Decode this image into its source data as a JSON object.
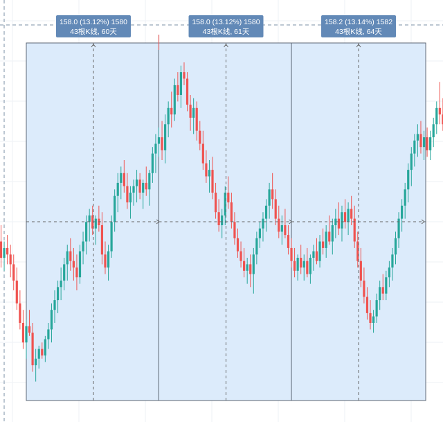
{
  "chart_data": {
    "type": "candlestick",
    "grid": true,
    "colors": {
      "up": "#26a69a",
      "down": "#ef5350",
      "range_fill": "#dcebfb",
      "range_border": "#5b6573",
      "label_bg": "#6289b7",
      "grid": "#eef1f5",
      "dashed_line": "#7a8fa6",
      "measure_line": "#666666",
      "cursor_line": "#e06060"
    },
    "price_range": {
      "min": 0,
      "max": 100
    },
    "candles": [
      {
        "o": 45,
        "h": 50,
        "l": 37,
        "c": 40
      },
      {
        "o": 40,
        "h": 45,
        "l": 36,
        "c": 43
      },
      {
        "o": 43,
        "h": 47,
        "l": 38,
        "c": 41
      },
      {
        "o": 41,
        "h": 44,
        "l": 34,
        "c": 38
      },
      {
        "o": 38,
        "h": 41,
        "l": 30,
        "c": 33
      },
      {
        "o": 33,
        "h": 37,
        "l": 24,
        "c": 26
      },
      {
        "o": 26,
        "h": 30,
        "l": 18,
        "c": 20
      },
      {
        "o": 20,
        "h": 24,
        "l": 12,
        "c": 14
      },
      {
        "o": 14,
        "h": 21,
        "l": 9,
        "c": 19
      },
      {
        "o": 19,
        "h": 24,
        "l": 16,
        "c": 17
      },
      {
        "o": 17,
        "h": 20,
        "l": 5,
        "c": 7
      },
      {
        "o": 7,
        "h": 12,
        "l": 2,
        "c": 9
      },
      {
        "o": 9,
        "h": 13,
        "l": 6,
        "c": 12
      },
      {
        "o": 12,
        "h": 14,
        "l": 9,
        "c": 10
      },
      {
        "o": 10,
        "h": 16,
        "l": 8,
        "c": 15
      },
      {
        "o": 15,
        "h": 20,
        "l": 12,
        "c": 18
      },
      {
        "o": 18,
        "h": 26,
        "l": 14,
        "c": 24
      },
      {
        "o": 24,
        "h": 30,
        "l": 20,
        "c": 27
      },
      {
        "o": 27,
        "h": 33,
        "l": 23,
        "c": 31
      },
      {
        "o": 31,
        "h": 37,
        "l": 27,
        "c": 33
      },
      {
        "o": 33,
        "h": 40,
        "l": 30,
        "c": 38
      },
      {
        "o": 38,
        "h": 44,
        "l": 33,
        "c": 42
      },
      {
        "o": 42,
        "h": 46,
        "l": 36,
        "c": 39
      },
      {
        "o": 39,
        "h": 43,
        "l": 33,
        "c": 37
      },
      {
        "o": 37,
        "h": 41,
        "l": 30,
        "c": 34
      },
      {
        "o": 34,
        "h": 44,
        "l": 32,
        "c": 42
      },
      {
        "o": 42,
        "h": 48,
        "l": 38,
        "c": 45
      },
      {
        "o": 45,
        "h": 53,
        "l": 41,
        "c": 51
      },
      {
        "o": 51,
        "h": 55,
        "l": 45,
        "c": 53
      },
      {
        "o": 53,
        "h": 56,
        "l": 47,
        "c": 49
      },
      {
        "o": 49,
        "h": 53,
        "l": 44,
        "c": 52
      },
      {
        "o": 52,
        "h": 56,
        "l": 48,
        "c": 50
      },
      {
        "o": 50,
        "h": 54,
        "l": 38,
        "c": 41
      },
      {
        "o": 41,
        "h": 45,
        "l": 35,
        "c": 37
      },
      {
        "o": 37,
        "h": 44,
        "l": 33,
        "c": 42
      },
      {
        "o": 42,
        "h": 53,
        "l": 40,
        "c": 51
      },
      {
        "o": 51,
        "h": 61,
        "l": 48,
        "c": 59
      },
      {
        "o": 59,
        "h": 66,
        "l": 54,
        "c": 63
      },
      {
        "o": 63,
        "h": 68,
        "l": 58,
        "c": 66
      },
      {
        "o": 66,
        "h": 70,
        "l": 60,
        "c": 62
      },
      {
        "o": 62,
        "h": 66,
        "l": 55,
        "c": 57
      },
      {
        "o": 57,
        "h": 62,
        "l": 52,
        "c": 60
      },
      {
        "o": 60,
        "h": 64,
        "l": 56,
        "c": 62
      },
      {
        "o": 62,
        "h": 67,
        "l": 57,
        "c": 64
      },
      {
        "o": 64,
        "h": 66,
        "l": 58,
        "c": 60
      },
      {
        "o": 60,
        "h": 64,
        "l": 55,
        "c": 63
      },
      {
        "o": 63,
        "h": 68,
        "l": 59,
        "c": 61
      },
      {
        "o": 61,
        "h": 67,
        "l": 56,
        "c": 66
      },
      {
        "o": 66,
        "h": 74,
        "l": 63,
        "c": 72
      },
      {
        "o": 72,
        "h": 78,
        "l": 66,
        "c": 75
      },
      {
        "o": 75,
        "h": 80,
        "l": 71,
        "c": 77
      },
      {
        "o": 77,
        "h": 82,
        "l": 70,
        "c": 73
      },
      {
        "o": 73,
        "h": 84,
        "l": 69,
        "c": 81
      },
      {
        "o": 81,
        "h": 88,
        "l": 77,
        "c": 86
      },
      {
        "o": 86,
        "h": 91,
        "l": 80,
        "c": 84
      },
      {
        "o": 84,
        "h": 95,
        "l": 82,
        "c": 93
      },
      {
        "o": 93,
        "h": 97,
        "l": 88,
        "c": 90
      },
      {
        "o": 90,
        "h": 99,
        "l": 86,
        "c": 97
      },
      {
        "o": 97,
        "h": 100,
        "l": 93,
        "c": 95
      },
      {
        "o": 95,
        "h": 97,
        "l": 85,
        "c": 87
      },
      {
        "o": 87,
        "h": 90,
        "l": 79,
        "c": 83
      },
      {
        "o": 83,
        "h": 89,
        "l": 78,
        "c": 86
      },
      {
        "o": 86,
        "h": 88,
        "l": 76,
        "c": 79
      },
      {
        "o": 79,
        "h": 82,
        "l": 73,
        "c": 75
      },
      {
        "o": 75,
        "h": 79,
        "l": 67,
        "c": 69
      },
      {
        "o": 69,
        "h": 73,
        "l": 63,
        "c": 65
      },
      {
        "o": 65,
        "h": 70,
        "l": 60,
        "c": 67
      },
      {
        "o": 67,
        "h": 71,
        "l": 58,
        "c": 60
      },
      {
        "o": 60,
        "h": 63,
        "l": 52,
        "c": 54
      },
      {
        "o": 54,
        "h": 58,
        "l": 48,
        "c": 50
      },
      {
        "o": 50,
        "h": 55,
        "l": 46,
        "c": 53
      },
      {
        "o": 53,
        "h": 62,
        "l": 50,
        "c": 60
      },
      {
        "o": 60,
        "h": 65,
        "l": 55,
        "c": 57
      },
      {
        "o": 57,
        "h": 60,
        "l": 49,
        "c": 51
      },
      {
        "o": 51,
        "h": 54,
        "l": 44,
        "c": 46
      },
      {
        "o": 46,
        "h": 49,
        "l": 40,
        "c": 42
      },
      {
        "o": 42,
        "h": 45,
        "l": 37,
        "c": 39
      },
      {
        "o": 39,
        "h": 43,
        "l": 34,
        "c": 36
      },
      {
        "o": 36,
        "h": 40,
        "l": 32,
        "c": 38
      },
      {
        "o": 38,
        "h": 41,
        "l": 31,
        "c": 35
      },
      {
        "o": 35,
        "h": 43,
        "l": 29,
        "c": 41
      },
      {
        "o": 41,
        "h": 48,
        "l": 38,
        "c": 46
      },
      {
        "o": 46,
        "h": 51,
        "l": 43,
        "c": 49
      },
      {
        "o": 49,
        "h": 54,
        "l": 45,
        "c": 52
      },
      {
        "o": 52,
        "h": 58,
        "l": 48,
        "c": 56
      },
      {
        "o": 56,
        "h": 63,
        "l": 52,
        "c": 61
      },
      {
        "o": 61,
        "h": 66,
        "l": 55,
        "c": 58
      },
      {
        "o": 58,
        "h": 61,
        "l": 50,
        "c": 52
      },
      {
        "o": 52,
        "h": 56,
        "l": 46,
        "c": 48
      },
      {
        "o": 48,
        "h": 53,
        "l": 44,
        "c": 50
      },
      {
        "o": 50,
        "h": 55,
        "l": 46,
        "c": 47
      },
      {
        "o": 47,
        "h": 50,
        "l": 41,
        "c": 43
      },
      {
        "o": 43,
        "h": 46,
        "l": 37,
        "c": 39
      },
      {
        "o": 39,
        "h": 43,
        "l": 34,
        "c": 36
      },
      {
        "o": 36,
        "h": 41,
        "l": 33,
        "c": 40
      },
      {
        "o": 40,
        "h": 44,
        "l": 35,
        "c": 37
      },
      {
        "o": 37,
        "h": 41,
        "l": 33,
        "c": 39
      },
      {
        "o": 39,
        "h": 43,
        "l": 34,
        "c": 35
      },
      {
        "o": 35,
        "h": 41,
        "l": 32,
        "c": 40
      },
      {
        "o": 40,
        "h": 44,
        "l": 36,
        "c": 42
      },
      {
        "o": 42,
        "h": 46,
        "l": 38,
        "c": 39
      },
      {
        "o": 39,
        "h": 47,
        "l": 37,
        "c": 45
      },
      {
        "o": 45,
        "h": 49,
        "l": 41,
        "c": 43
      },
      {
        "o": 43,
        "h": 50,
        "l": 40,
        "c": 48
      },
      {
        "o": 48,
        "h": 53,
        "l": 44,
        "c": 45
      },
      {
        "o": 45,
        "h": 52,
        "l": 41,
        "c": 50
      },
      {
        "o": 50,
        "h": 55,
        "l": 46,
        "c": 52
      },
      {
        "o": 52,
        "h": 57,
        "l": 47,
        "c": 49
      },
      {
        "o": 49,
        "h": 56,
        "l": 45,
        "c": 54
      },
      {
        "o": 54,
        "h": 58,
        "l": 49,
        "c": 51
      },
      {
        "o": 51,
        "h": 57,
        "l": 47,
        "c": 55
      },
      {
        "o": 55,
        "h": 59,
        "l": 50,
        "c": 52
      },
      {
        "o": 52,
        "h": 56,
        "l": 43,
        "c": 45
      },
      {
        "o": 45,
        "h": 48,
        "l": 37,
        "c": 39
      },
      {
        "o": 39,
        "h": 43,
        "l": 31,
        "c": 33
      },
      {
        "o": 33,
        "h": 37,
        "l": 26,
        "c": 28
      },
      {
        "o": 28,
        "h": 31,
        "l": 21,
        "c": 23
      },
      {
        "o": 23,
        "h": 27,
        "l": 18,
        "c": 20
      },
      {
        "o": 20,
        "h": 24,
        "l": 17,
        "c": 22
      },
      {
        "o": 22,
        "h": 29,
        "l": 20,
        "c": 27
      },
      {
        "o": 27,
        "h": 33,
        "l": 24,
        "c": 31
      },
      {
        "o": 31,
        "h": 35,
        "l": 27,
        "c": 29
      },
      {
        "o": 29,
        "h": 36,
        "l": 27,
        "c": 34
      },
      {
        "o": 34,
        "h": 39,
        "l": 31,
        "c": 37
      },
      {
        "o": 37,
        "h": 43,
        "l": 33,
        "c": 41
      },
      {
        "o": 41,
        "h": 48,
        "l": 38,
        "c": 46
      },
      {
        "o": 46,
        "h": 54,
        "l": 43,
        "c": 52
      },
      {
        "o": 52,
        "h": 58,
        "l": 48,
        "c": 56
      },
      {
        "o": 56,
        "h": 63,
        "l": 52,
        "c": 61
      },
      {
        "o": 61,
        "h": 69,
        "l": 57,
        "c": 67
      },
      {
        "o": 67,
        "h": 74,
        "l": 62,
        "c": 72
      },
      {
        "o": 72,
        "h": 78,
        "l": 68,
        "c": 76
      },
      {
        "o": 76,
        "h": 81,
        "l": 71,
        "c": 78
      },
      {
        "o": 78,
        "h": 82,
        "l": 72,
        "c": 74
      },
      {
        "o": 74,
        "h": 79,
        "l": 70,
        "c": 77
      },
      {
        "o": 77,
        "h": 80,
        "l": 71,
        "c": 73
      },
      {
        "o": 73,
        "h": 79,
        "l": 70,
        "c": 77
      },
      {
        "o": 77,
        "h": 83,
        "l": 74,
        "c": 81
      },
      {
        "o": 81,
        "h": 88,
        "l": 78,
        "c": 86
      },
      {
        "o": 86,
        "h": 94,
        "l": 81,
        "c": 84
      },
      {
        "o": 84,
        "h": 89,
        "l": 79,
        "c": 81
      },
      {
        "o": 81,
        "h": 87,
        "l": 78,
        "c": 85
      },
      {
        "o": 85,
        "h": 91,
        "l": 81,
        "c": 86
      }
    ],
    "ranges": [
      {
        "start": 8,
        "end": 50,
        "price_end": 62,
        "label_line1": "158.0 (13.12%) 1580",
        "label_line2": "43根K线, 60天"
      },
      {
        "start": 50,
        "end": 92,
        "price_end": 56,
        "label_line1": "158.0 (13.12%) 1580",
        "label_line2": "43根K线, 61天"
      },
      {
        "start": 92,
        "end": 134,
        "price_end": 71,
        "label_line1": "158.2 (13.14%) 1582",
        "label_line2": "43根K线, 64天"
      }
    ]
  }
}
